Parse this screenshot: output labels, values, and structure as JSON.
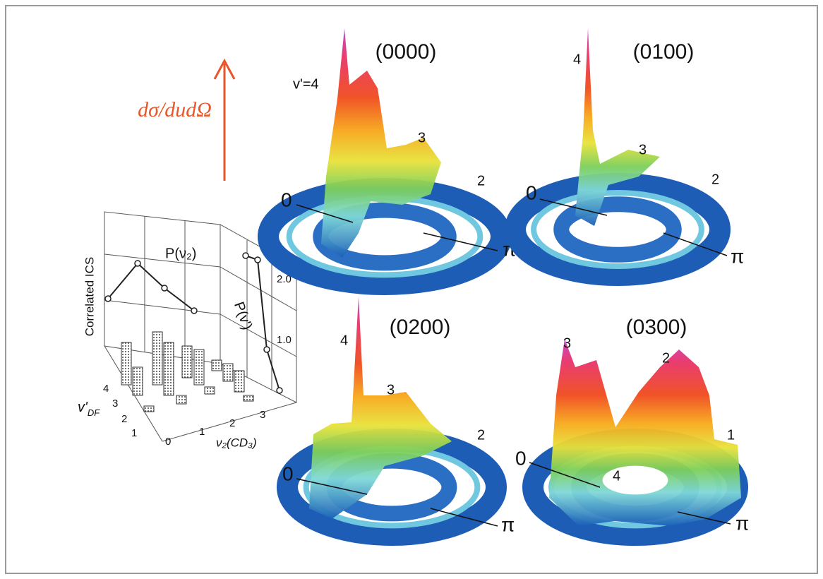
{
  "formula": "dσ/dudΩ",
  "ics_chart": {
    "y_label": "Correlated ICS",
    "p_v2": "P(ν₂)",
    "p_v": "P(v')",
    "right_ticks": [
      "2.0",
      "1.0"
    ],
    "depth_label": {
      "base": "v'",
      "sub": "DF"
    },
    "depth_ticks": [
      "4",
      "3",
      "2",
      "1"
    ],
    "x_ticks": [
      "0",
      "1",
      "2",
      "3"
    ],
    "x_label": "ν₂(CD₃)"
  },
  "panels": [
    {
      "title": "(0000)",
      "peak_labels": [
        "v'=4",
        "3",
        "2"
      ],
      "zero": "0",
      "pi": "π"
    },
    {
      "title": "(0100)",
      "peak_labels": [
        "4",
        "3",
        "2"
      ],
      "zero": "0",
      "pi": "π"
    },
    {
      "title": "(0200)",
      "peak_labels": [
        "4",
        "3",
        "2"
      ],
      "zero": "0",
      "pi": "π"
    },
    {
      "title": "(0300)",
      "peak_labels": [
        "3",
        "2",
        "1",
        "4"
      ],
      "zero": "0",
      "pi": "π"
    }
  ]
}
